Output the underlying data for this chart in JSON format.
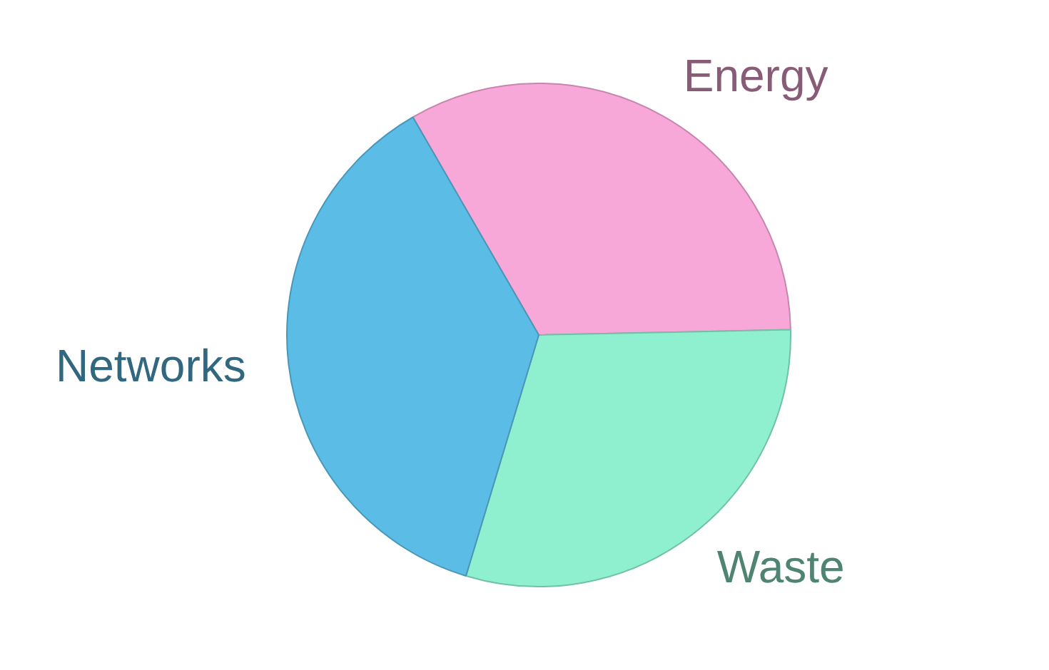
{
  "chart_data": {
    "type": "pie",
    "categories": [
      "Energy",
      "Waste",
      "Networks"
    ],
    "values": [
      33,
      30,
      37
    ],
    "colors": [
      "#f7a8d8",
      "#8ff0d0",
      "#5bbde6"
    ],
    "legend": false
  }
}
